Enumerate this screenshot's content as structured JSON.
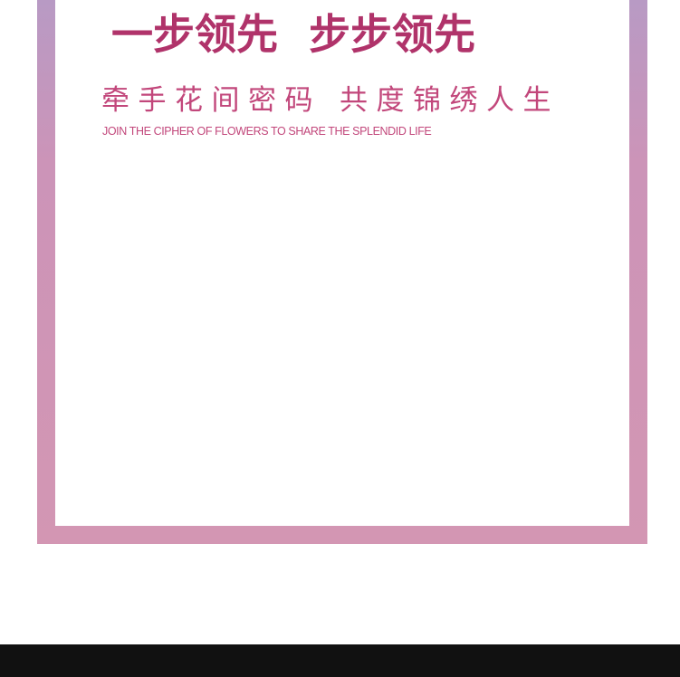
{
  "headline": {
    "part1": "一步领先",
    "part2": "步步领先"
  },
  "subtitle_cn": {
    "part1": "牵手花间密码",
    "part2": "共度锦绣人生"
  },
  "subtitle_en": "JOIN THE CIPHER OF FLOWERS TO SHARE THE SPLENDID LIFE",
  "colors": {
    "frame_top": "#b89ac4",
    "frame_bottom": "#d396b3",
    "headline": "#b0336a",
    "subtitle": "#c2477b",
    "footer_bar": "#111111"
  }
}
